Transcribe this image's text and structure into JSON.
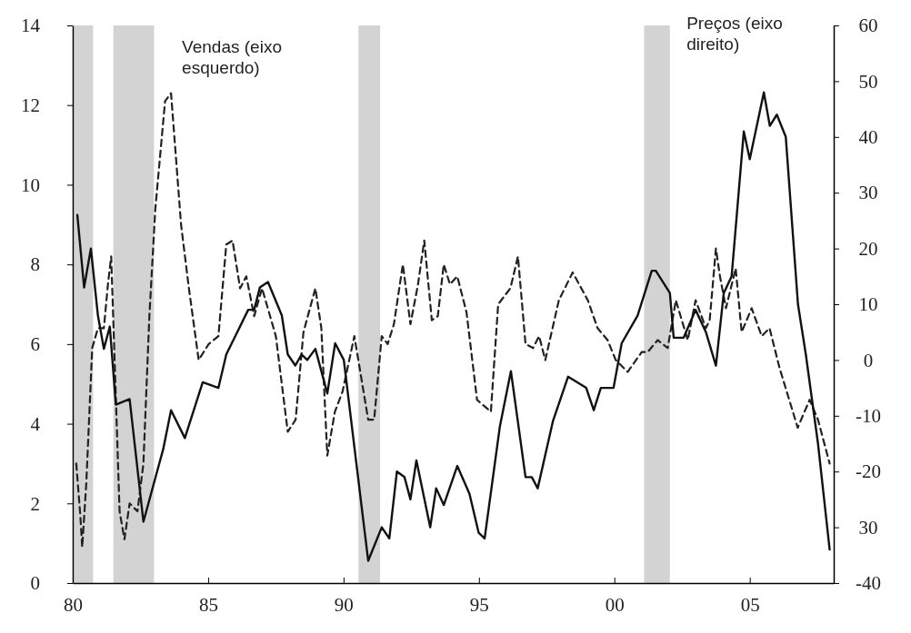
{
  "chart_data": {
    "type": "line",
    "xlim": [
      1980,
      2008.1
    ],
    "xticks": [
      {
        "value": 1980,
        "label": "80"
      },
      {
        "value": 1985,
        "label": "85"
      },
      {
        "value": 1990,
        "label": "90"
      },
      {
        "value": 1995,
        "label": "95"
      },
      {
        "value": 2000,
        "label": "00"
      },
      {
        "value": 2005,
        "label": "05"
      }
    ],
    "ylim": [
      0,
      14
    ],
    "yticks": [
      0,
      2,
      4,
      6,
      8,
      10,
      12,
      14
    ],
    "y2lim": [
      -40,
      60
    ],
    "y2ticks": [
      -40,
      {
        "value": -30,
        "label": "30"
      },
      -20,
      -10,
      0,
      10,
      20,
      30,
      40,
      50,
      60
    ],
    "grid": false,
    "legend": false,
    "marker": "none",
    "bands": [
      {
        "axis": "x",
        "from": 1980.05,
        "to": 1980.75,
        "color": "#d3d3d3"
      },
      {
        "axis": "x",
        "from": 1981.5,
        "to": 1983.0,
        "color": "#d3d3d3"
      },
      {
        "axis": "x",
        "from": 1990.55,
        "to": 1991.35,
        "color": "#d3d3d3"
      },
      {
        "axis": "x",
        "from": 2001.1,
        "to": 2002.05,
        "color": "#d3d3d3"
      }
    ],
    "series": [
      {
        "name": "Vendas (eixo esquerdo)",
        "color": "#222222",
        "axis": "y",
        "line_style": "dashed",
        "x": [
          1980.13,
          1980.28,
          1980.35,
          1980.5,
          1980.72,
          1980.93,
          1981.15,
          1981.3,
          1981.42,
          1981.59,
          1981.73,
          1981.91,
          1982.1,
          1982.39,
          1982.61,
          1982.83,
          1983.05,
          1983.41,
          1983.63,
          1984.0,
          1984.29,
          1984.65,
          1985.02,
          1985.38,
          1985.67,
          1985.9,
          1986.18,
          1986.41,
          1986.7,
          1986.99,
          1987.5,
          1987.94,
          1988.23,
          1988.52,
          1988.96,
          1989.18,
          1989.4,
          1989.68,
          1989.96,
          1990.4,
          1990.91,
          1991.13,
          1991.41,
          1991.63,
          1991.86,
          1992.19,
          1992.47,
          1992.75,
          1992.98,
          1993.26,
          1993.48,
          1993.7,
          1993.93,
          1994.2,
          1994.54,
          1994.93,
          1995.44,
          1995.71,
          1996.16,
          1996.44,
          1996.72,
          1997.0,
          1997.22,
          1997.45,
          1997.95,
          1998.46,
          1999.02,
          1999.38,
          1999.75,
          2000.05,
          2000.49,
          2001.01,
          2001.23,
          2001.6,
          2001.97,
          2002.27,
          2002.71,
          2003.0,
          2003.38,
          2003.52,
          2003.75,
          2003.9,
          2004.12,
          2004.48,
          2004.7,
          2005.07,
          2005.44,
          2005.73,
          2006.1,
          2006.77,
          2007.21,
          2007.52,
          2007.95
        ],
        "values": [
          3.0,
          1.7,
          0.9,
          2.5,
          5.9,
          6.4,
          6.4,
          7.5,
          8.2,
          4.7,
          1.8,
          1.1,
          2.0,
          1.8,
          3.0,
          6.7,
          9.4,
          12.1,
          12.3,
          9.0,
          7.4,
          5.6,
          6.0,
          6.2,
          8.5,
          8.6,
          7.4,
          7.7,
          6.7,
          7.4,
          6.2,
          3.8,
          4.1,
          6.3,
          7.4,
          6.4,
          3.2,
          4.3,
          4.8,
          6.2,
          4.1,
          4.1,
          6.2,
          6.0,
          6.5,
          8.0,
          6.5,
          7.5,
          8.6,
          6.6,
          6.7,
          8.0,
          7.5,
          7.7,
          6.8,
          4.6,
          4.3,
          7.0,
          7.4,
          8.2,
          6.0,
          5.9,
          6.2,
          5.6,
          7.1,
          7.8,
          7.1,
          6.4,
          6.1,
          5.6,
          5.3,
          5.8,
          5.8,
          6.1,
          5.9,
          7.1,
          6.1,
          7.1,
          6.4,
          6.6,
          8.4,
          7.7,
          6.9,
          7.9,
          6.3,
          6.9,
          6.2,
          6.4,
          5.4,
          3.9,
          4.6,
          4.1,
          3.0
        ]
      },
      {
        "name": "Preços (eixo direito)",
        "color": "#111111",
        "axis": "y2",
        "line_style": "solid",
        "x": [
          1980.17,
          1980.42,
          1980.67,
          1980.93,
          1981.15,
          1981.37,
          1981.59,
          1982.1,
          1982.61,
          1983.34,
          1983.63,
          1984.14,
          1984.8,
          1985.38,
          1985.67,
          1986.48,
          1986.7,
          1986.91,
          1987.21,
          1987.72,
          1987.94,
          1988.22,
          1988.45,
          1988.66,
          1988.96,
          1989.4,
          1989.69,
          1990.01,
          1990.91,
          1991.41,
          1991.69,
          1991.97,
          1992.25,
          1992.47,
          1992.69,
          1993.2,
          1993.42,
          1993.7,
          1994.2,
          1994.65,
          1994.99,
          1995.21,
          1995.77,
          1996.18,
          1996.72,
          1996.95,
          1997.17,
          1997.73,
          1998.29,
          1998.96,
          1999.24,
          1999.5,
          1999.97,
          2000.27,
          2000.86,
          2001.38,
          2001.53,
          2002.05,
          2002.19,
          2002.56,
          2003.0,
          2003.38,
          2003.75,
          2004.04,
          2004.33,
          2004.78,
          2005.0,
          2005.52,
          2005.74,
          2006.0,
          2006.33,
          2006.78,
          2007.07,
          2007.52,
          2007.95
        ],
        "values": [
          26,
          13,
          20,
          8,
          2,
          6,
          -8,
          -7,
          -29,
          -16,
          -9,
          -14,
          -4,
          -5,
          1,
          9,
          9,
          13,
          14,
          8,
          1,
          -1,
          1,
          0,
          2,
          -6,
          3,
          0,
          -36,
          -30,
          -32,
          -20,
          -21,
          -25,
          -18,
          -30,
          -23,
          -26,
          -19,
          -24,
          -31,
          -32,
          -12,
          -2,
          -21,
          -21,
          -23,
          -11,
          -3,
          -5,
          -9,
          -5,
          -5,
          3,
          8,
          16,
          16,
          12,
          4,
          4,
          9,
          5,
          -1,
          12,
          15,
          41,
          36,
          48,
          42,
          44,
          40,
          10,
          1,
          -15,
          -34
        ]
      }
    ]
  }
}
